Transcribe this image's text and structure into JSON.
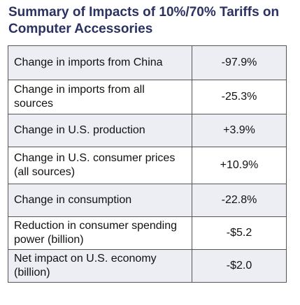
{
  "title": "Summary of Impacts of 10%/70% Tariffs on Computer Accessories",
  "rows": [
    {
      "label": "Change in imports from China",
      "value": "-97.9%"
    },
    {
      "label": "Change in imports from all sources",
      "value": "-25.3%"
    },
    {
      "label": "Change in U.S. production",
      "value": "+3.9%"
    },
    {
      "label": "Change in U.S. consumer prices (all sources)",
      "value": "+10.9%"
    },
    {
      "label": "Change in consumption",
      "value": "-22.8%"
    },
    {
      "label": "Reduction in consumer spending power (billion)",
      "value": "-$5.2"
    },
    {
      "label": "Net impact on U.S. economy (billion)",
      "value": "-$2.0"
    }
  ],
  "colors": {
    "title": "#2b3160",
    "shaded_row": "#eceef4",
    "border": "#555555"
  }
}
